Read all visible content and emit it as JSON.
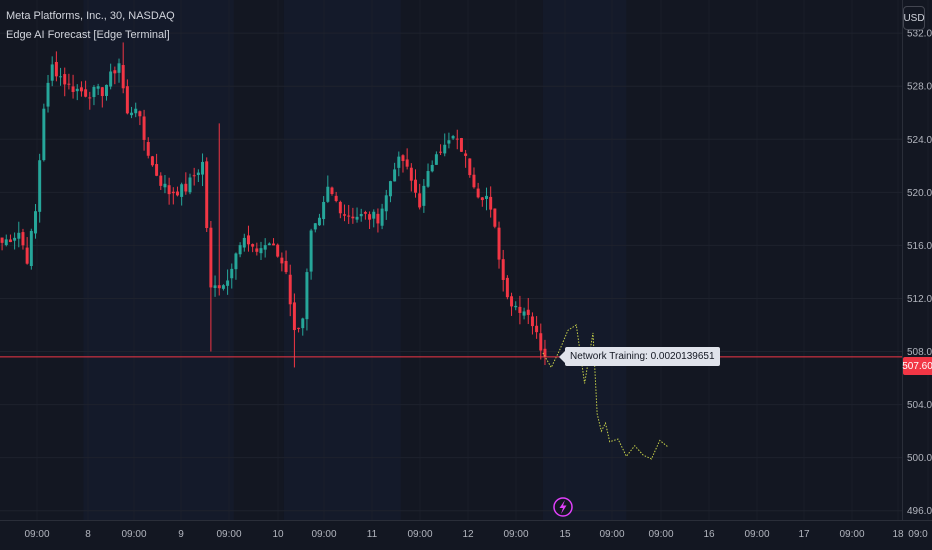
{
  "header": {
    "symbol_title": "Meta Platforms, Inc., 30, NASDAQ",
    "indicator_label": "Edge AI Forecast [Edge Terminal]"
  },
  "currency_label": "USD",
  "last_price_label": "507.60",
  "annotation": {
    "text": "Network Training: 0.0020139651"
  },
  "event_marker_icon": "lightning-icon",
  "colors": {
    "background": "#131722",
    "grid": "#1e222d",
    "up": "#26a69a",
    "down": "#f23645",
    "forecast": "#c8d24a",
    "price_line": "#f23645",
    "event_marker": "#e040fb"
  },
  "chart_data": {
    "type": "candlestick",
    "title": "Meta Platforms, Inc., 30, NASDAQ",
    "y_ticks": [
      "532.00",
      "528.00",
      "524.00",
      "520.00",
      "516.00",
      "512.00",
      "508.00",
      "504.00",
      "500.00",
      "496.00"
    ],
    "y_tick_values": [
      532,
      528,
      524,
      520,
      516,
      512,
      508,
      504,
      500,
      496
    ],
    "ylim": [
      495.3,
      534.5
    ],
    "x_ticks": [
      "09:00",
      "8",
      "09:00",
      "9",
      "09:00",
      "10",
      "09:00",
      "11",
      "09:00",
      "12",
      "09:00",
      "15",
      "09:00",
      "09:00",
      "16",
      "09:00",
      "17",
      "09:00",
      "18",
      "09:0"
    ],
    "bar_count": 216,
    "xlim": [
      0,
      216
    ],
    "last_price": 507.6,
    "price_anchors": [
      [
        0,
        516.2
      ],
      [
        4,
        517.0
      ],
      [
        6,
        515.0
      ],
      [
        8,
        518.5
      ],
      [
        10,
        526.5
      ],
      [
        12,
        529.5
      ],
      [
        16,
        528.0
      ],
      [
        20,
        527.5
      ],
      [
        24,
        527.6
      ],
      [
        28,
        529.8
      ],
      [
        30,
        525.8
      ],
      [
        32,
        526.6
      ],
      [
        34,
        524.0
      ],
      [
        36,
        522.0
      ],
      [
        38,
        520.8
      ],
      [
        40,
        520.0
      ],
      [
        44,
        520.3
      ],
      [
        48,
        522.2
      ],
      [
        50,
        512.6
      ],
      [
        52,
        513.1
      ],
      [
        54,
        513.4
      ],
      [
        56,
        515.8
      ],
      [
        58,
        516.4
      ],
      [
        60,
        515.5
      ],
      [
        64,
        516.2
      ],
      [
        68,
        514.2
      ],
      [
        70,
        509.4
      ],
      [
        72,
        510.7
      ],
      [
        74,
        516.8
      ],
      [
        76,
        517.7
      ],
      [
        78,
        520.2
      ],
      [
        82,
        518.4
      ],
      [
        86,
        518.2
      ],
      [
        90,
        518.1
      ],
      [
        92,
        519.7
      ],
      [
        94,
        522.1
      ],
      [
        96,
        522.4
      ],
      [
        100,
        519.2
      ],
      [
        104,
        523.3
      ],
      [
        106,
        523.4
      ],
      [
        108,
        524.1
      ],
      [
        110,
        523.3
      ],
      [
        112,
        521.6
      ],
      [
        114,
        520.0
      ],
      [
        116,
        519.7
      ],
      [
        118,
        517.1
      ],
      [
        120,
        513.4
      ],
      [
        122,
        511.6
      ],
      [
        126,
        511.0
      ],
      [
        128,
        509.2
      ],
      [
        130,
        507.6
      ]
    ],
    "forecast": {
      "type": "line",
      "x": [
        130,
        132,
        134,
        136,
        138,
        140,
        142,
        143,
        144,
        145,
        146,
        148,
        150,
        152,
        154,
        156,
        158,
        160
      ],
      "y": [
        507.9,
        506.8,
        508.1,
        509.6,
        510.0,
        505.6,
        509.4,
        503.3,
        502.0,
        502.6,
        501.2,
        501.4,
        500.1,
        500.9,
        500.2,
        499.9,
        501.3,
        500.8
      ]
    },
    "grid": true,
    "price_line": 507.6
  }
}
